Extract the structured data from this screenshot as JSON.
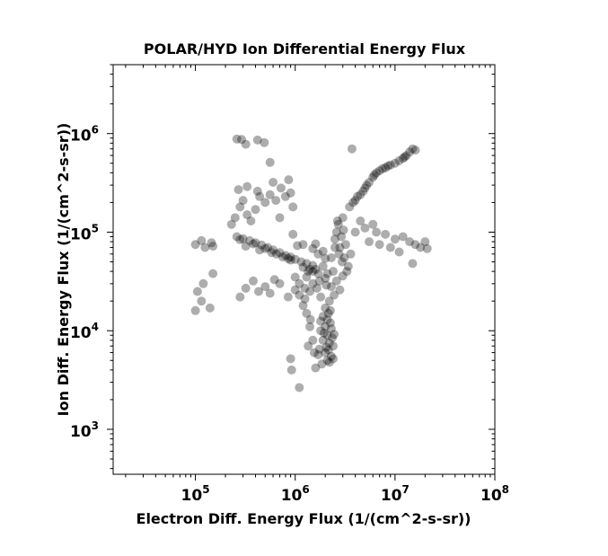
{
  "chart_data": {
    "type": "scatter",
    "title": "POLAR/HYD  Ion Differential Energy Flux",
    "xlabel": "Electron Diff. Energy Flux (1/(cm^2-s-sr))",
    "ylabel": "Ion Diff. Energy Flux (1/(cm^2-s-sr))",
    "xscale": "log",
    "yscale": "log",
    "xlim": [
      15000,
      100000000
    ],
    "ylim": [
      350,
      5000000
    ],
    "x_ticks": [
      {
        "value": 100000,
        "base": "10",
        "exp": "5"
      },
      {
        "value": 1000000,
        "base": "10",
        "exp": "6"
      },
      {
        "value": 10000000,
        "base": "10",
        "exp": "7"
      },
      {
        "value": 100000000,
        "base": "10",
        "exp": "8"
      }
    ],
    "y_ticks": [
      {
        "value": 1000,
        "base": "10",
        "exp": "3"
      },
      {
        "value": 10000,
        "base": "10",
        "exp": "4"
      },
      {
        "value": 100000,
        "base": "10",
        "exp": "5"
      },
      {
        "value": 1000000,
        "base": "10",
        "exp": "6"
      }
    ],
    "grid": false,
    "marker_color": "#000000",
    "marker_alpha": 0.32,
    "series": [
      {
        "points": [
          [
            260000,
            880000
          ],
          [
            290000,
            870000
          ],
          [
            320000,
            780000
          ],
          [
            420000,
            860000
          ],
          [
            490000,
            810000
          ],
          [
            560000,
            510000
          ],
          [
            100000,
            16000
          ],
          [
            105000,
            25000
          ],
          [
            115000,
            20000
          ],
          [
            120000,
            30000
          ],
          [
            140000,
            17000
          ],
          [
            150000,
            38000
          ],
          [
            100000,
            75000
          ],
          [
            115000,
            82000
          ],
          [
            125000,
            70000
          ],
          [
            145000,
            78000
          ],
          [
            150000,
            72000
          ],
          [
            230000,
            120000
          ],
          [
            250000,
            140000
          ],
          [
            280000,
            180000
          ],
          [
            300000,
            210000
          ],
          [
            330000,
            150000
          ],
          [
            360000,
            130000
          ],
          [
            400000,
            170000
          ],
          [
            440000,
            230000
          ],
          [
            500000,
            200000
          ],
          [
            560000,
            240000
          ],
          [
            640000,
            210000
          ],
          [
            720000,
            280000
          ],
          [
            800000,
            230000
          ],
          [
            900000,
            250000
          ],
          [
            270000,
            270000
          ],
          [
            330000,
            290000
          ],
          [
            420000,
            260000
          ],
          [
            600000,
            320000
          ],
          [
            860000,
            340000
          ],
          [
            950000,
            180000
          ],
          [
            700000,
            140000
          ],
          [
            260000,
            90000
          ],
          [
            300000,
            86000
          ],
          [
            350000,
            82000
          ],
          [
            400000,
            78000
          ],
          [
            460000,
            74000
          ],
          [
            530000,
            70000
          ],
          [
            600000,
            66000
          ],
          [
            700000,
            62000
          ],
          [
            800000,
            58000
          ],
          [
            900000,
            56000
          ],
          [
            1000000,
            53000
          ],
          [
            1150000,
            50000
          ],
          [
            1300000,
            48000
          ],
          [
            1500000,
            46000
          ],
          [
            280000,
            84000
          ],
          [
            380000,
            76000
          ],
          [
            500000,
            68000
          ],
          [
            650000,
            60000
          ],
          [
            750000,
            56000
          ],
          [
            850000,
            54000
          ],
          [
            320000,
            72000
          ],
          [
            440000,
            66000
          ],
          [
            580000,
            62000
          ],
          [
            900000,
            52000
          ],
          [
            1200000,
            44000
          ],
          [
            1400000,
            42000
          ],
          [
            1300000,
            35000
          ],
          [
            1500000,
            30000
          ],
          [
            1700000,
            38000
          ],
          [
            2000000,
            34000
          ],
          [
            2300000,
            28000
          ],
          [
            2600000,
            32000
          ],
          [
            1400000,
            25000
          ],
          [
            1800000,
            22000
          ],
          [
            2200000,
            20000
          ],
          [
            1600000,
            42000
          ],
          [
            1900000,
            45000
          ],
          [
            2400000,
            40000
          ],
          [
            1100000,
            30000
          ],
          [
            1250000,
            27000
          ],
          [
            2800000,
            26000
          ],
          [
            3000000,
            36000
          ],
          [
            1500000,
            40000
          ],
          [
            2100000,
            38000
          ],
          [
            1650000,
            27000
          ],
          [
            2050000,
            29000
          ],
          [
            1350000,
            40000
          ],
          [
            1750000,
            32000
          ],
          [
            2450000,
            23000
          ],
          [
            1000000,
            35000
          ],
          [
            1900000,
            14000
          ],
          [
            2000000,
            11000
          ],
          [
            2100000,
            9000
          ],
          [
            2200000,
            7500
          ],
          [
            2000000,
            6000
          ],
          [
            2100000,
            5000
          ],
          [
            2300000,
            5500
          ],
          [
            1900000,
            8000
          ],
          [
            2250000,
            12000
          ],
          [
            2000000,
            17000
          ],
          [
            2150000,
            15000
          ],
          [
            1800000,
            10000
          ],
          [
            2400000,
            7000
          ],
          [
            1850000,
            4600
          ],
          [
            2400000,
            5200
          ],
          [
            2200000,
            4800
          ],
          [
            2050000,
            6800
          ],
          [
            1950000,
            9500
          ],
          [
            2350000,
            8500
          ],
          [
            2100000,
            13000
          ],
          [
            2250000,
            16000
          ],
          [
            2300000,
            10500
          ],
          [
            1750000,
            6500
          ],
          [
            1800000,
            12500
          ],
          [
            2450000,
            9200
          ],
          [
            2150000,
            6400
          ],
          [
            2700000,
            120000
          ],
          [
            2900000,
            90000
          ],
          [
            2800000,
            70000
          ],
          [
            3000000,
            140000
          ],
          [
            3100000,
            55000
          ],
          [
            2600000,
            100000
          ],
          [
            2500000,
            85000
          ],
          [
            3200000,
            75000
          ],
          [
            2750000,
            60000
          ],
          [
            2950000,
            50000
          ],
          [
            2650000,
            130000
          ],
          [
            3050000,
            105000
          ],
          [
            3500000,
            180000
          ],
          [
            4000000,
            210000
          ],
          [
            4500000,
            240000
          ],
          [
            5000000,
            280000
          ],
          [
            5500000,
            320000
          ],
          [
            6000000,
            360000
          ],
          [
            6500000,
            400000
          ],
          [
            7000000,
            420000
          ],
          [
            8000000,
            450000
          ],
          [
            9000000,
            480000
          ],
          [
            10000000,
            500000
          ],
          [
            11000000,
            530000
          ],
          [
            12000000,
            560000
          ],
          [
            13000000,
            600000
          ],
          [
            14000000,
            650000
          ],
          [
            15000000,
            700000
          ],
          [
            4200000,
            230000
          ],
          [
            5200000,
            300000
          ],
          [
            7500000,
            440000
          ],
          [
            12500000,
            580000
          ],
          [
            3800000,
            200000
          ],
          [
            4800000,
            260000
          ],
          [
            6200000,
            380000
          ],
          [
            8500000,
            470000
          ],
          [
            16000000,
            680000
          ],
          [
            3700000,
            700000
          ],
          [
            4000000,
            100000
          ],
          [
            5000000,
            110000
          ],
          [
            6500000,
            100000
          ],
          [
            8000000,
            95000
          ],
          [
            10000000,
            85000
          ],
          [
            12000000,
            90000
          ],
          [
            14000000,
            80000
          ],
          [
            16000000,
            75000
          ],
          [
            18000000,
            70000
          ],
          [
            20000000,
            80000
          ],
          [
            21000000,
            68000
          ],
          [
            15000000,
            48000
          ],
          [
            5500000,
            80000
          ],
          [
            7000000,
            75000
          ],
          [
            9000000,
            70000
          ],
          [
            11000000,
            63000
          ],
          [
            4500000,
            130000
          ],
          [
            3600000,
            60000
          ],
          [
            3400000,
            45000
          ],
          [
            3300000,
            40000
          ],
          [
            6000000,
            120000
          ],
          [
            1500000,
            68000
          ],
          [
            1700000,
            60000
          ],
          [
            2000000,
            54000
          ],
          [
            1200000,
            75000
          ],
          [
            2300000,
            55000
          ],
          [
            1600000,
            76000
          ],
          [
            950000,
            95000
          ],
          [
            1050000,
            73000
          ],
          [
            1900000,
            64000
          ],
          [
            2500000,
            70000
          ],
          [
            280000,
            22000
          ],
          [
            320000,
            27000
          ],
          [
            380000,
            32000
          ],
          [
            430000,
            25000
          ],
          [
            500000,
            28000
          ],
          [
            560000,
            24000
          ],
          [
            620000,
            33000
          ],
          [
            700000,
            30000
          ],
          [
            850000,
            22000
          ],
          [
            1000000,
            26000
          ],
          [
            1100000,
            23000
          ],
          [
            1200000,
            18000
          ],
          [
            1300000,
            15000
          ],
          [
            1400000,
            11000
          ],
          [
            1500000,
            8000
          ],
          [
            1550000,
            6000
          ],
          [
            1600000,
            4200
          ],
          [
            1350000,
            7000
          ],
          [
            1100000,
            2650
          ],
          [
            920000,
            4000
          ],
          [
            900000,
            5200
          ],
          [
            1700000,
            5700
          ],
          [
            1420000,
            13000
          ],
          [
            1250000,
            21000
          ]
        ]
      }
    ]
  }
}
